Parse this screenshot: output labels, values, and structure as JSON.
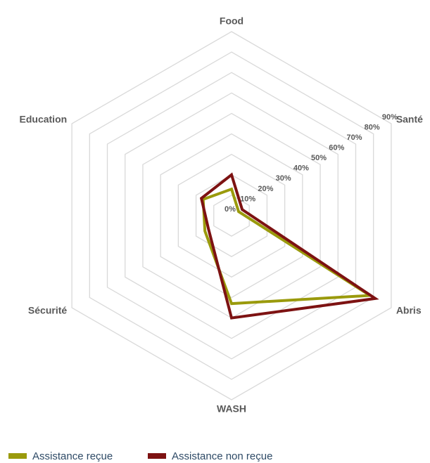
{
  "chart_data": {
    "type": "radar",
    "categories": [
      "Food",
      "Santé",
      "Abris",
      "WASH",
      "Sécurité",
      "Education"
    ],
    "series": [
      {
        "name": "Assistance reçue",
        "color": "#9a9a0c",
        "values": [
          13,
          4,
          78,
          43,
          15,
          16
        ]
      },
      {
        "name": "Assistance non reçue",
        "color": "#7d1212",
        "values": [
          20,
          6,
          81,
          50,
          13,
          17
        ]
      }
    ],
    "ylim": [
      0,
      90
    ],
    "yticks": [
      {
        "value": 0,
        "label": "0%"
      },
      {
        "value": 10,
        "label": "10%"
      },
      {
        "value": 20,
        "label": "20%"
      },
      {
        "value": 30,
        "label": "30%"
      },
      {
        "value": 40,
        "label": "40%"
      },
      {
        "value": 50,
        "label": "50%"
      },
      {
        "value": 60,
        "label": "60%"
      },
      {
        "value": 70,
        "label": "70%"
      },
      {
        "value": 80,
        "label": "80%"
      },
      {
        "value": 90,
        "label": "90%"
      }
    ],
    "grid": true
  }
}
